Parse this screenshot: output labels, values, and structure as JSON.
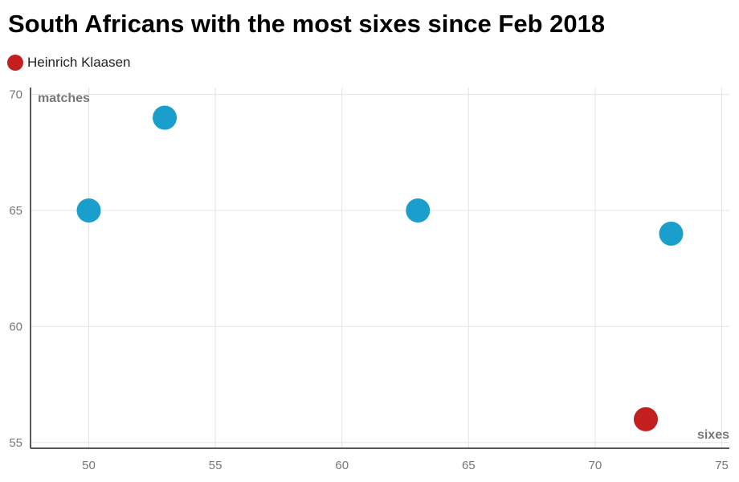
{
  "chart_data": {
    "type": "scatter",
    "title": "South Africans with the most sixes since Feb 2018",
    "xlabel": "sixes",
    "ylabel": "matches",
    "xlim": [
      47.7,
      75.3
    ],
    "ylim": [
      54.75,
      70.3
    ],
    "xticks": [
      50,
      55,
      60,
      65,
      70,
      75
    ],
    "yticks": [
      55,
      60,
      65,
      70
    ],
    "grid": true,
    "legend_position": "top-left",
    "highlight_color": "#c41f1f",
    "default_color": "#1a9ecb",
    "legend": [
      {
        "label": "Heinrich Klaasen",
        "color": "#c41f1f"
      }
    ],
    "points": [
      {
        "x": 50,
        "y": 65,
        "highlight": false
      },
      {
        "x": 53,
        "y": 69,
        "highlight": false
      },
      {
        "x": 63,
        "y": 65,
        "highlight": false
      },
      {
        "x": 73,
        "y": 64,
        "highlight": false
      },
      {
        "x": 72,
        "y": 56,
        "highlight": true
      }
    ]
  }
}
